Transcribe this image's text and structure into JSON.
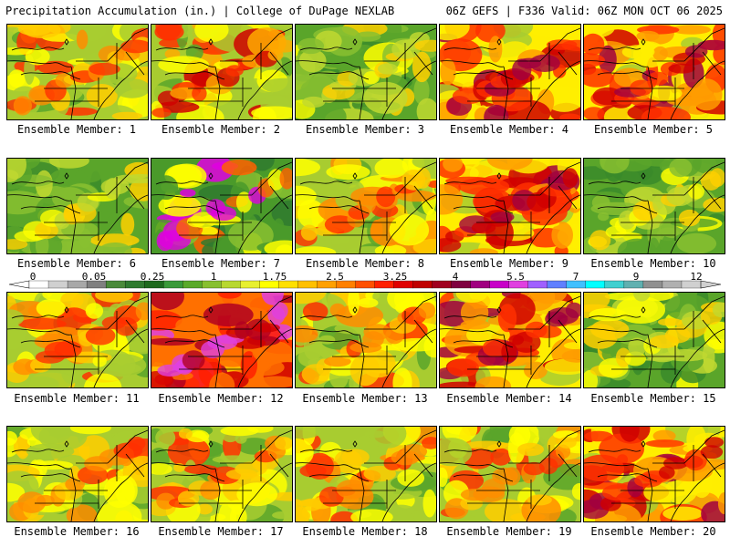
{
  "header": {
    "left": "Precipitation Accumulation (in.) | College of DuPage NEXLAB",
    "right": "06Z GEFS | F336 Valid: 06Z MON OCT 06 2025"
  },
  "member_prefix": "Ensemble Member: ",
  "members": [
    {
      "id": 1,
      "label": "Ensemble Member: 1",
      "intensity": "moderate"
    },
    {
      "id": 2,
      "label": "Ensemble Member: 2",
      "intensity": "moderate-south-heavy"
    },
    {
      "id": 3,
      "label": "Ensemble Member: 3",
      "intensity": "light"
    },
    {
      "id": 4,
      "label": "Ensemble Member: 4",
      "intensity": "heavy"
    },
    {
      "id": 5,
      "label": "Ensemble Member: 5",
      "intensity": "heavy"
    },
    {
      "id": 6,
      "label": "Ensemble Member: 6",
      "intensity": "light"
    },
    {
      "id": 7,
      "label": "Ensemble Member: 7",
      "intensity": "light-south-heavy"
    },
    {
      "id": 8,
      "label": "Ensemble Member: 8",
      "intensity": "moderate"
    },
    {
      "id": 9,
      "label": "Ensemble Member: 9",
      "intensity": "heavy"
    },
    {
      "id": 10,
      "label": "Ensemble Member: 10",
      "intensity": "light"
    },
    {
      "id": 11,
      "label": "Ensemble Member: 11",
      "intensity": "moderate"
    },
    {
      "id": 12,
      "label": "Ensemble Member: 12",
      "intensity": "very-heavy"
    },
    {
      "id": 13,
      "label": "Ensemble Member: 13",
      "intensity": "moderate"
    },
    {
      "id": 14,
      "label": "Ensemble Member: 14",
      "intensity": "heavy"
    },
    {
      "id": 15,
      "label": "Ensemble Member: 15",
      "intensity": "light"
    },
    {
      "id": 16,
      "label": "Ensemble Member: 16",
      "intensity": "moderate"
    },
    {
      "id": 17,
      "label": "Ensemble Member: 17",
      "intensity": "moderate"
    },
    {
      "id": 18,
      "label": "Ensemble Member: 18",
      "intensity": "moderate"
    },
    {
      "id": 19,
      "label": "Ensemble Member: 19",
      "intensity": "moderate"
    },
    {
      "id": 20,
      "label": "Ensemble Member: 20",
      "intensity": "heavy"
    }
  ],
  "colorbar": {
    "labels": [
      "0",
      "0.05",
      "0.25",
      "1",
      "1.75",
      "2.5",
      "3.25",
      "4",
      "5.5",
      "7",
      "9",
      "12"
    ],
    "colors": [
      "#ffffff",
      "#d0d0d0",
      "#a8a8a8",
      "#808080",
      "#4a8a3a",
      "#2f7a2f",
      "#1e6a1e",
      "#3a9a3a",
      "#5aaa2a",
      "#88c030",
      "#b8d830",
      "#e8f030",
      "#ffff00",
      "#ffe000",
      "#ffc000",
      "#ffa000",
      "#ff8000",
      "#ff5000",
      "#ff2000",
      "#e00000",
      "#c00000",
      "#a00020",
      "#800040",
      "#a00080",
      "#c800c8",
      "#e040e0",
      "#a060ff",
      "#6080ff",
      "#40c0ff",
      "#00ffff",
      "#40d0d0",
      "#60b0b0",
      "#909090",
      "#b0b0b0",
      "#d0d0d0"
    ]
  }
}
